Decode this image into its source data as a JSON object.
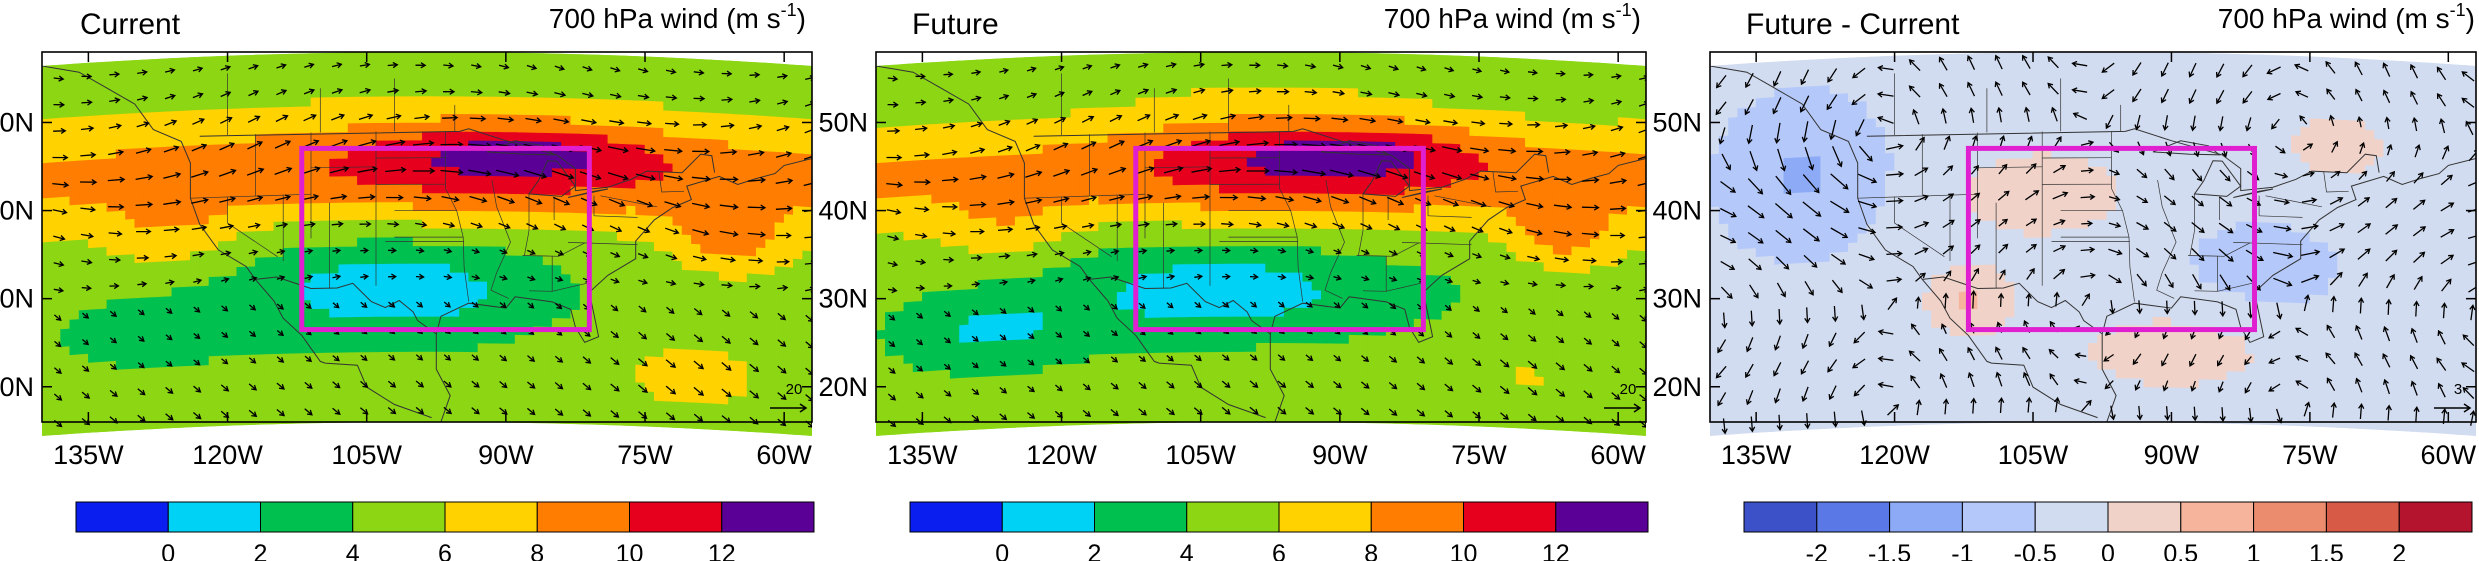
{
  "figure_title": "",
  "panels": [
    {
      "title": "Current",
      "right_title": "700 hPa wind (m s",
      "right_title_sup": "-1",
      "right_title_end": ")",
      "ref_vector_label": "20",
      "field": "speed",
      "colorbar": "speed"
    },
    {
      "title": "Future",
      "right_title": "700 hPa wind (m s",
      "right_title_sup": "-1",
      "right_title_end": ")",
      "ref_vector_label": "20",
      "field": "speed_future",
      "colorbar": "speed"
    },
    {
      "title": "Future - Current",
      "right_title": "700 hPa wind (m s",
      "right_title_sup": "-1",
      "right_title_end": ")",
      "ref_vector_label": "3",
      "field": "diff",
      "colorbar": "diff"
    }
  ],
  "axes": {
    "lon_ticks": [
      "135W",
      "120W",
      "105W",
      "90W",
      "75W",
      "60W"
    ],
    "lon_values": [
      -135,
      -120,
      -105,
      -90,
      -75,
      -60
    ],
    "lat_ticks": [
      "20N",
      "30N",
      "40N",
      "50N"
    ],
    "lat_values": [
      20,
      30,
      40,
      50
    ],
    "lon_range": [
      -140,
      -57
    ],
    "lat_range": [
      16,
      58
    ]
  },
  "box": {
    "lon_min": -112,
    "lon_max": -81,
    "lat_min": 27,
    "lat_max": 47,
    "color": "#e020d0"
  },
  "colorbars": {
    "speed": {
      "labels": [
        "0",
        "2",
        "4",
        "6",
        "8",
        "10",
        "12"
      ],
      "colors": [
        "#0a1ef0",
        "#00d2f5",
        "#00c050",
        "#8cd614",
        "#ffd200",
        "#ff7d00",
        "#e6001e",
        "#5a0096"
      ]
    },
    "diff": {
      "labels": [
        "-2",
        "-1.5",
        "-1",
        "-0.5",
        "0",
        "0.5",
        "1",
        "1.5",
        "2"
      ],
      "colors": [
        "#3c50c8",
        "#5a78e6",
        "#8caaf5",
        "#b4c8fa",
        "#d2dcf0",
        "#f0d2c8",
        "#f5b49b",
        "#ec8c6e",
        "#d75a46",
        "#b4142d"
      ]
    }
  }
}
